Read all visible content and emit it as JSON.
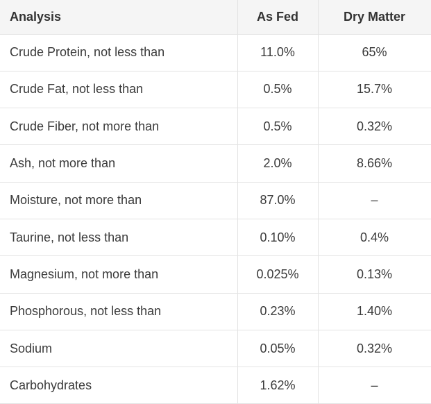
{
  "table": {
    "headers": [
      "Analysis",
      "As Fed",
      "Dry Matter"
    ],
    "rows": [
      [
        "Crude Protein, not less than",
        "11.0%",
        "65%"
      ],
      [
        "Crude Fat, not less than",
        "0.5%",
        "15.7%"
      ],
      [
        "Crude Fiber, not more than",
        "0.5%",
        "0.32%"
      ],
      [
        "Ash, not more than",
        "2.0%",
        "8.66%"
      ],
      [
        "Moisture, not more than",
        "87.0%",
        "–"
      ],
      [
        "Taurine, not less than",
        "0.10%",
        "0.4%"
      ],
      [
        "Magnesium, not more than",
        "0.025%",
        "0.13%"
      ],
      [
        "Phosphorous, not less than",
        "0.23%",
        "1.40%"
      ],
      [
        "Sodium",
        "0.05%",
        "0.32%"
      ],
      [
        "Carbohydrates",
        "1.62%",
        "–"
      ]
    ]
  }
}
